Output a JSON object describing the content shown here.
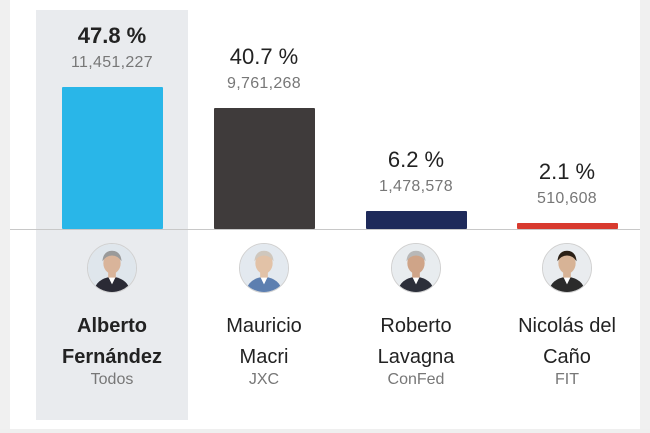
{
  "chart_data": {
    "type": "bar",
    "categories": [
      "Alberto Fernández",
      "Mauricio Macri",
      "Roberto Lavagna",
      "Nicolás del Caño"
    ],
    "values": [
      47.8,
      40.7,
      6.2,
      2.1
    ],
    "ylim": [
      0,
      50
    ]
  },
  "candidates": [
    {
      "pct_label": "47.8 %",
      "votes_label": "11,451,227",
      "name_line1": "Alberto",
      "name_line2": "Fernández",
      "party": "Todos",
      "color": "#29b6e8",
      "selected": true,
      "avatar_icon": "candidate-photo"
    },
    {
      "pct_label": "40.7 %",
      "votes_label": "9,761,268",
      "name_line1": "Mauricio",
      "name_line2": "Macri",
      "party": "JXC",
      "color": "#3f3b3b",
      "selected": false,
      "avatar_icon": "candidate-photo"
    },
    {
      "pct_label": "6.2 %",
      "votes_label": "1,478,578",
      "name_line1": "Roberto",
      "name_line2": "Lavagna",
      "party": "ConFed",
      "color": "#1e2a5a",
      "selected": false,
      "avatar_icon": "candidate-photo"
    },
    {
      "pct_label": "2.1 %",
      "votes_label": "510,608",
      "name_line1": "Nicolás del",
      "name_line2": "Caño",
      "party": "FIT",
      "color": "#d83a2e",
      "selected": false,
      "avatar_icon": "candidate-photo"
    }
  ]
}
